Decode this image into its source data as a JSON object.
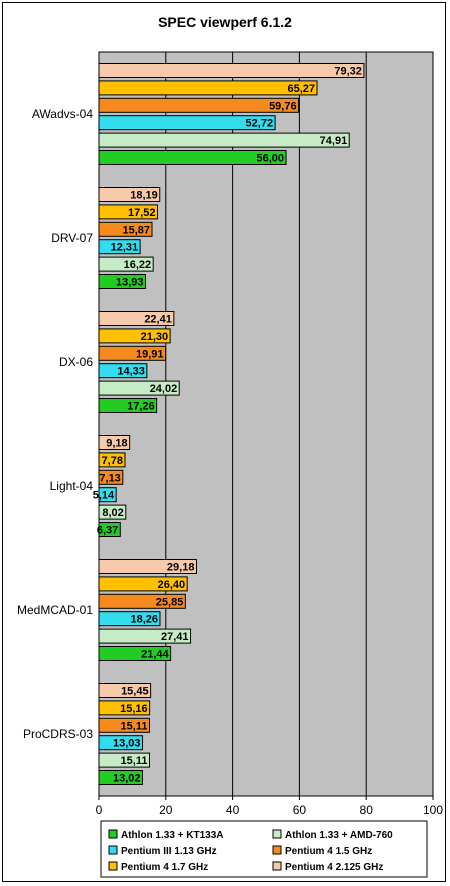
{
  "chart_data": {
    "type": "bar",
    "orientation": "horizontal",
    "title": "SPEC viewperf 6.1.2",
    "categories": [
      "AWadvs-04",
      "DRV-07",
      "DX-06",
      "Light-04",
      "MedMCAD-01",
      "ProCDRS-03"
    ],
    "series": [
      {
        "name": "Pentium 4 2.125 GHz",
        "color": "#f7caac",
        "values": [
          79.32,
          18.19,
          22.41,
          9.18,
          29.18,
          15.45
        ],
        "labels": [
          "79,32",
          "18,19",
          "22,41",
          "9,18",
          "29,18",
          "15,45"
        ]
      },
      {
        "name": "Pentium 4 1.7 GHz",
        "color": "#ffc000",
        "values": [
          65.27,
          17.52,
          21.3,
          7.78,
          26.4,
          15.16
        ],
        "labels": [
          "65,27",
          "17,52",
          "21,30",
          "7,78",
          "26,40",
          "15,16"
        ]
      },
      {
        "name": "Pentium 4 1.5 GHz",
        "color": "#f58a1f",
        "values": [
          59.76,
          15.87,
          19.91,
          7.13,
          25.85,
          15.11
        ],
        "labels": [
          "59,76",
          "15,87",
          "19,91",
          "7,13",
          "25,85",
          "15,11"
        ]
      },
      {
        "name": "Pentium III 1.13 GHz",
        "color": "#33ddee",
        "values": [
          52.72,
          12.31,
          14.33,
          5.14,
          18.26,
          13.03
        ],
        "labels": [
          "52,72",
          "12,31",
          "14,33",
          "5,14",
          "18,26",
          "13,03"
        ]
      },
      {
        "name": "Athlon 1.33 + AMD-760",
        "color": "#c6ecc6",
        "values": [
          74.91,
          16.22,
          24.02,
          8.02,
          27.41,
          15.11
        ],
        "labels": [
          "74,91",
          "16,22",
          "24,02",
          "8,02",
          "27,41",
          "15,11"
        ]
      },
      {
        "name": "Athlon 1.33 + KT133A",
        "color": "#22cc22",
        "values": [
          56.0,
          13.93,
          17.26,
          6.37,
          21.44,
          13.02
        ],
        "labels": [
          "56,00",
          "13,93",
          "17,26",
          "6,37",
          "21,44",
          "13,02"
        ]
      }
    ],
    "xlim": [
      0,
      100
    ],
    "xticks": [
      "0",
      "20",
      "40",
      "60",
      "80",
      "100"
    ],
    "grid": true,
    "plot_background": "#c0c0c0",
    "legend_position": "bottom",
    "legend": [
      {
        "name": "Athlon 1.33 + KT133A",
        "color": "#22cc22"
      },
      {
        "name": "Athlon 1.33 + AMD-760",
        "color": "#c6ecc6"
      },
      {
        "name": "Pentium III 1.13 GHz",
        "color": "#33ddee"
      },
      {
        "name": "Pentium 4 1.5 GHz",
        "color": "#f58a1f"
      },
      {
        "name": "Pentium 4 1.7 GHz",
        "color": "#ffc000"
      },
      {
        "name": "Pentium 4 2.125 GHz",
        "color": "#f7caac"
      }
    ]
  }
}
